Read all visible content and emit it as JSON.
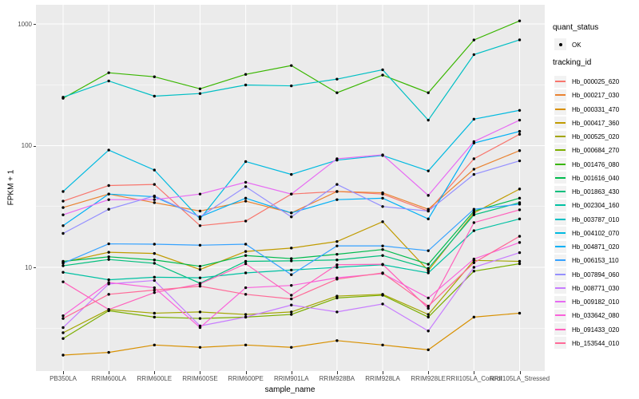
{
  "figure": {
    "background": "#FFFFFF",
    "panel_background": "#EBEBEB",
    "grid_color": "#FFFFFF",
    "point_color": "#000000",
    "tick_label_color": "#4D4D4D"
  },
  "axes": {
    "x": {
      "title": "sample_name"
    },
    "y": {
      "title": "FPKM + 1",
      "scale": "log10",
      "tick_labels": [
        "10",
        "100",
        "1000"
      ],
      "tick_values": [
        10,
        100,
        1000
      ]
    }
  },
  "legend": {
    "quant_status": {
      "title": "quant_status",
      "items": [
        {
          "label": "OK",
          "marker": "point"
        }
      ]
    },
    "tracking_id_title": "tracking_id"
  },
  "chart_data": {
    "type": "line",
    "title": "",
    "xlabel": "sample_name",
    "ylabel": "FPKM + 1",
    "y_scale": "log10",
    "ylim": [
      1.4,
      1430
    ],
    "grid": true,
    "legend_position": "right",
    "categories": [
      "PB350LA",
      "RRIM600LA",
      "RRIM600LE",
      "RRIM600SE",
      "RRIM600PE",
      "RRIM901LA",
      "RRIM928BA",
      "RRIM928LA",
      "RRIM928LE",
      "RRII105LA_Control",
      "RRII105LA_Stressed"
    ],
    "minor_gridlines": [
      3.162,
      31.62,
      316.2
    ],
    "series": [
      {
        "name": "Hb_000025_620",
        "color": "#F8766D",
        "values": [
          35,
          47,
          48,
          22,
          24,
          40,
          42,
          40,
          29,
          78,
          124
        ]
      },
      {
        "name": "Hb_000217_030",
        "color": "#EA8331",
        "values": [
          31,
          40,
          34,
          29,
          35,
          28,
          42,
          41,
          30,
          64,
          91
        ]
      },
      {
        "name": "Hb_000331_470",
        "color": "#D89000",
        "values": [
          1.9,
          2.0,
          2.3,
          2.2,
          2.3,
          2.2,
          2.5,
          2.3,
          2.1,
          3.9,
          4.2
        ]
      },
      {
        "name": "Hb_000417_360",
        "color": "#C09B00",
        "values": [
          11,
          13.3,
          13,
          9.6,
          13.5,
          14.4,
          16.3,
          23.7,
          9.4,
          28,
          44
        ]
      },
      {
        "name": "Hb_000525_020",
        "color": "#A3A500",
        "values": [
          2.9,
          4.5,
          4.2,
          4.3,
          4.1,
          4.3,
          5.8,
          6.0,
          4.1,
          11.4,
          11.2
        ]
      },
      {
        "name": "Hb_000684_270",
        "color": "#7CAE00",
        "values": [
          2.6,
          4.4,
          3.9,
          3.8,
          3.9,
          4.1,
          5.6,
          5.9,
          3.9,
          9.3,
          10.7
        ]
      },
      {
        "name": "Hb_001476_080",
        "color": "#39B600",
        "values": [
          245,
          397,
          368,
          293,
          385,
          455,
          272,
          380,
          272,
          738,
          1060
        ]
      },
      {
        "name": "Hb_001616_040",
        "color": "#00BB4E",
        "values": [
          11.2,
          12.2,
          11.5,
          10.2,
          12.5,
          11.8,
          12.8,
          14,
          10.6,
          29,
          37
        ]
      },
      {
        "name": "Hb_001863_430",
        "color": "#00BF7D",
        "values": [
          10.3,
          11.6,
          10.8,
          7.4,
          11.2,
          11.3,
          11.5,
          12.5,
          9.8,
          27,
          34
        ]
      },
      {
        "name": "Hb_002304_160",
        "color": "#00C1A3",
        "values": [
          9.1,
          7.9,
          8.3,
          8.2,
          9.0,
          9.5,
          10.0,
          10.5,
          9.0,
          20,
          25
        ]
      },
      {
        "name": "Hb_003787_010",
        "color": "#00BFC4",
        "values": [
          250,
          340,
          255,
          268,
          315,
          310,
          352,
          420,
          162,
          560,
          740
        ]
      },
      {
        "name": "Hb_004102_070",
        "color": "#00BAE0",
        "values": [
          42,
          92,
          63,
          25,
          74,
          58,
          76,
          83,
          62,
          165,
          195
        ]
      },
      {
        "name": "Hb_004871_020",
        "color": "#00B0F6",
        "values": [
          22,
          40,
          38,
          26,
          37,
          28,
          36,
          37,
          25,
          105,
          131
        ]
      },
      {
        "name": "Hb_006153_110",
        "color": "#35A2FF",
        "values": [
          10.8,
          15.6,
          15.5,
          15.2,
          15.5,
          8.7,
          15.0,
          15.0,
          13.7,
          30,
          33
        ]
      },
      {
        "name": "Hb_007894_060",
        "color": "#9590FF",
        "values": [
          19,
          30,
          38.6,
          26,
          46,
          26,
          48,
          31.6,
          29,
          58,
          75
        ]
      },
      {
        "name": "Hb_008771_030",
        "color": "#C77CFF",
        "values": [
          3.2,
          7.3,
          7.8,
          3.3,
          3.9,
          4.9,
          4.3,
          5.0,
          3.0,
          10,
          13.2
        ]
      },
      {
        "name": "Hb_009182_010",
        "color": "#E76BF3",
        "values": [
          27,
          36,
          36,
          40,
          50,
          40,
          78,
          84,
          39,
          108,
          162
        ]
      },
      {
        "name": "Hb_033642_080",
        "color": "#FA62DB",
        "values": [
          4.0,
          7.5,
          6.8,
          3.2,
          6.8,
          7.1,
          8.2,
          8.9,
          5.6,
          11.7,
          16
        ]
      },
      {
        "name": "Hb_091433_020",
        "color": "#FF62BC",
        "values": [
          7.6,
          4.5,
          6.2,
          7.3,
          10.7,
          5.9,
          10.5,
          10.6,
          4.6,
          23.3,
          29.7
        ]
      },
      {
        "name": "Hb_153544_010",
        "color": "#FF6A98",
        "values": [
          3.8,
          6.0,
          6.5,
          7.0,
          6.0,
          5.5,
          8.0,
          9.0,
          4.8,
          10.9,
          18
        ]
      }
    ]
  }
}
